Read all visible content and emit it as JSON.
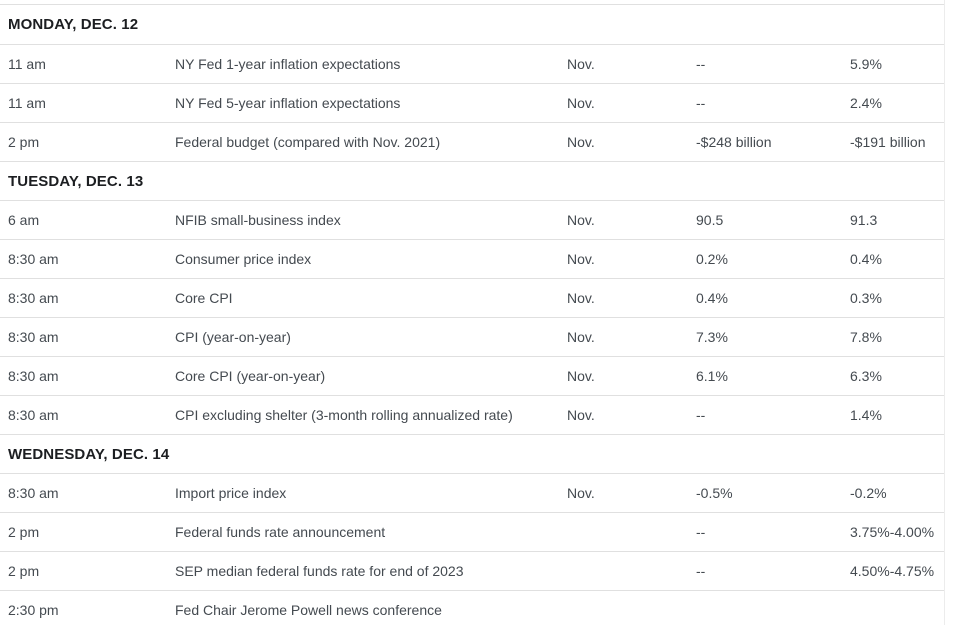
{
  "colors": {
    "background": "#ffffff",
    "divider": "#e0e0e0",
    "section_header_text": "#1c1e21",
    "row_text": "#444a50"
  },
  "sections": [
    {
      "header": "MONDAY, DEC. 12",
      "rows": [
        {
          "time": "11 am",
          "event": "NY Fed 1-year inflation expectations",
          "period": "Nov.",
          "actual": "--",
          "previous": "5.9%"
        },
        {
          "time": "11 am",
          "event": "NY Fed 5-year inflation expectations",
          "period": "Nov.",
          "actual": "--",
          "previous": "2.4%"
        },
        {
          "time": "2 pm",
          "event": "Federal budget (compared with Nov. 2021)",
          "period": "Nov.",
          "actual": "-$248 billion",
          "previous": "-$191 billion"
        }
      ]
    },
    {
      "header": "TUESDAY, DEC. 13",
      "rows": [
        {
          "time": "6 am",
          "event": "NFIB small-business index",
          "period": "Nov.",
          "actual": "90.5",
          "previous": "91.3"
        },
        {
          "time": "8:30 am",
          "event": "Consumer price index",
          "period": "Nov.",
          "actual": "0.2%",
          "previous": "0.4%"
        },
        {
          "time": "8:30 am",
          "event": "Core CPI",
          "period": "Nov.",
          "actual": "0.4%",
          "previous": "0.3%"
        },
        {
          "time": "8:30 am",
          "event": "CPI (year-on-year)",
          "period": "Nov.",
          "actual": "7.3%",
          "previous": "7.8%"
        },
        {
          "time": "8:30 am",
          "event": "Core CPI (year-on-year)",
          "period": "Nov.",
          "actual": "6.1%",
          "previous": "6.3%"
        },
        {
          "time": "8:30 am",
          "event": "CPI excluding shelter (3-month rolling annualized rate)",
          "period": "Nov.",
          "actual": "--",
          "previous": "1.4%"
        }
      ]
    },
    {
      "header": "WEDNESDAY, DEC. 14",
      "rows": [
        {
          "time": "8:30 am",
          "event": "Import price index",
          "period": "Nov.",
          "actual": "-0.5%",
          "previous": "-0.2%"
        },
        {
          "time": "2 pm",
          "event": "Federal funds rate announcement",
          "period": "",
          "actual": "--",
          "previous": "3.75%-4.00%"
        },
        {
          "time": "2 pm",
          "event": "SEP median federal funds rate for end of 2023",
          "period": "",
          "actual": "--",
          "previous": "4.50%-4.75%"
        },
        {
          "time": "2:30 pm",
          "event": "Fed Chair Jerome Powell news conference",
          "period": "",
          "actual": "",
          "previous": ""
        }
      ]
    }
  ]
}
